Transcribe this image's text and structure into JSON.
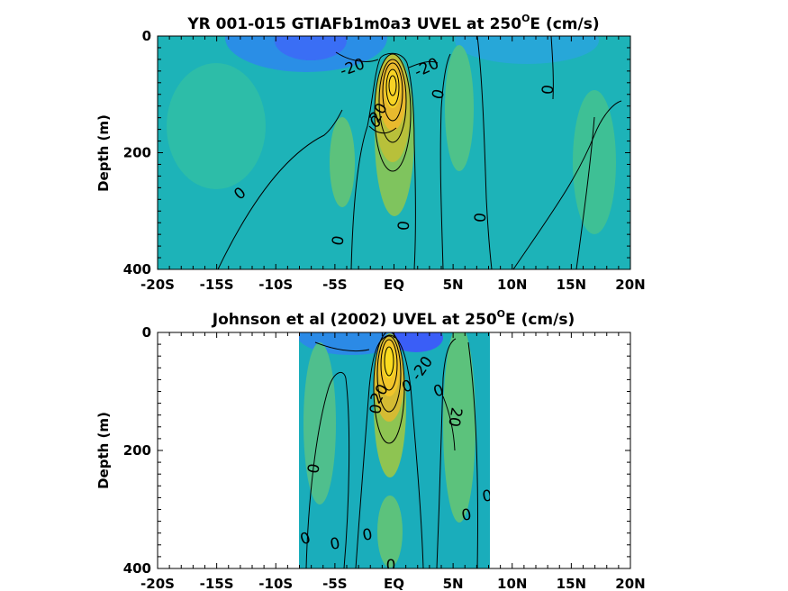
{
  "chart_data": [
    {
      "type": "heatmap",
      "subtype": "filled-contour",
      "title": "YR 001-015 GTIAFb1m0a3 UVEL at 250",
      "title_superscript": "O",
      "title_suffix": "E (cm/s)",
      "xlabel": "",
      "ylabel": "Depth (m)",
      "x_ticks": [
        "-20S",
        "-15S",
        "-10S",
        "-5S",
        "EQ",
        "5N",
        "10N",
        "15N",
        "20N"
      ],
      "x_tick_values": [
        -20,
        -15,
        -10,
        -5,
        0,
        5,
        10,
        15,
        20
      ],
      "y_ticks": [
        "0",
        "200",
        "400"
      ],
      "y_tick_values": [
        0,
        200,
        400
      ],
      "xlim": [
        -20,
        20
      ],
      "ylim": [
        400,
        0
      ],
      "y_reversed": true,
      "data_extent": [
        -20,
        20
      ],
      "colormap": "parula",
      "contour_interval": 20,
      "contour_labels": [
        "-20",
        "-20",
        "20",
        "0",
        "0",
        "0",
        "0",
        "0",
        "0",
        "0"
      ],
      "features": [
        {
          "kind": "eastward core (Equatorial Undercurrent)",
          "lat": 0,
          "depth": 100,
          "value_approx": 100
        },
        {
          "kind": "westward surface flow",
          "lat": -1.5,
          "depth": 20,
          "value_approx": -30
        }
      ]
    },
    {
      "type": "heatmap",
      "subtype": "filled-contour",
      "title": "Johnson et al (2002) UVEL at 250",
      "title_superscript": "O",
      "title_suffix": "E (cm/s)",
      "xlabel": "",
      "ylabel": "Depth (m)",
      "x_ticks": [
        "-20S",
        "-15S",
        "-10S",
        "-5S",
        "EQ",
        "5N",
        "10N",
        "15N",
        "20N"
      ],
      "x_tick_values": [
        -20,
        -15,
        -10,
        -5,
        0,
        5,
        10,
        15,
        20
      ],
      "y_ticks": [
        "0",
        "200",
        "400"
      ],
      "y_tick_values": [
        0,
        200,
        400
      ],
      "xlim": [
        -20,
        20
      ],
      "ylim": [
        400,
        0
      ],
      "y_reversed": true,
      "data_extent": [
        -8,
        8.2
      ],
      "colormap": "parula",
      "contour_interval": 20,
      "contour_labels": [
        "-20",
        "20",
        "20",
        "0",
        "0",
        "0",
        "0",
        "0",
        "0",
        "0",
        "0",
        "0",
        "0"
      ],
      "features": [
        {
          "kind": "eastward core (Equatorial Undercurrent)",
          "lat": 0,
          "depth": 80,
          "value_approx": 100
        },
        {
          "kind": "westward surface flow",
          "lat": -1,
          "depth": 10,
          "value_approx": -30
        }
      ]
    }
  ]
}
